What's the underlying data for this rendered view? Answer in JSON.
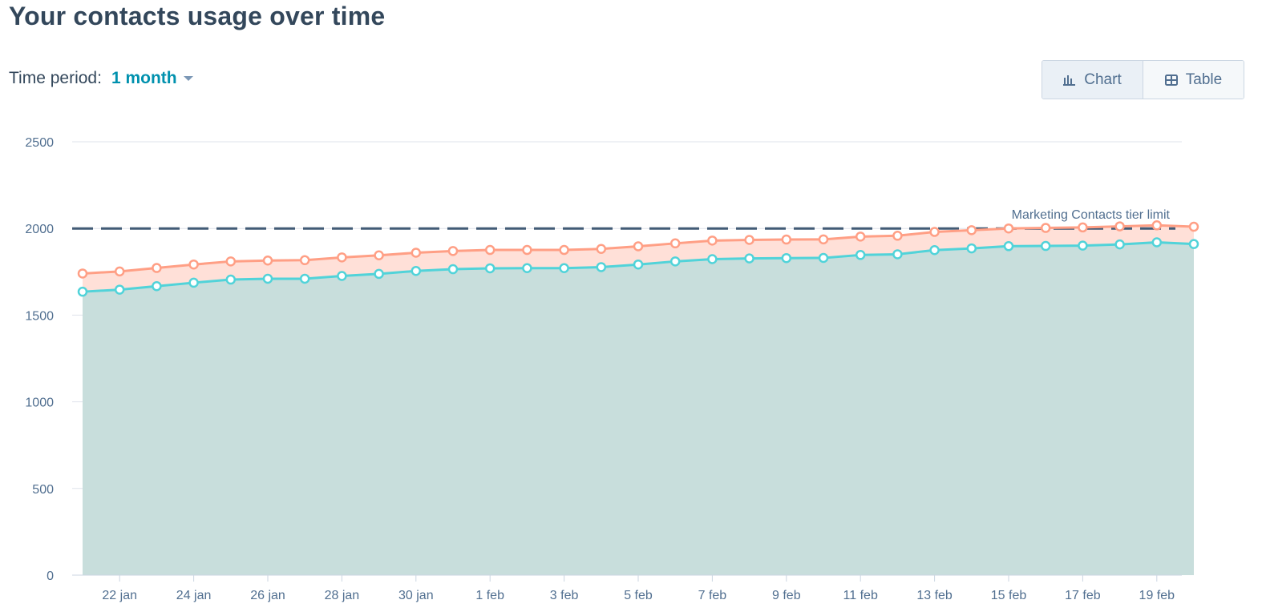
{
  "header": {
    "title": "Your contacts usage over time"
  },
  "filter": {
    "label": "Time period:",
    "value": "1 month"
  },
  "view_toggle": {
    "chart_label": "Chart",
    "chart_icon": "bar-chart-icon",
    "table_label": "Table",
    "table_icon": "table-icon",
    "active": "chart"
  },
  "chart_data": {
    "type": "area",
    "title": "",
    "xlabel": "",
    "ylabel": "",
    "ylim": [
      0,
      2500
    ],
    "y_ticks": [
      "0",
      "500",
      "1000",
      "1500",
      "2000",
      "2500"
    ],
    "grid": true,
    "x": [
      "21 jan",
      "22 jan",
      "23 jan",
      "24 jan",
      "25 jan",
      "26 jan",
      "27 jan",
      "28 jan",
      "29 jan",
      "30 jan",
      "31 jan",
      "1 feb",
      "2 feb",
      "3 feb",
      "4 feb",
      "5 feb",
      "6 feb",
      "7 feb",
      "8 feb",
      "9 feb",
      "10 feb",
      "11 feb",
      "12 feb",
      "13 feb",
      "14 feb",
      "15 feb",
      "16 feb",
      "17 feb",
      "18 feb",
      "19 feb",
      "20 feb"
    ],
    "x_tick_labels": [
      "22 jan",
      "24 jan",
      "26 jan",
      "28 jan",
      "30 jan",
      "1 feb",
      "3 feb",
      "5 feb",
      "7 feb",
      "9 feb",
      "11 feb",
      "13 feb",
      "15 feb",
      "17 feb",
      "19 feb"
    ],
    "series": [
      {
        "color": "#ff9f85",
        "fill": "#ffe0d8",
        "values": [
          1740,
          1752,
          1772,
          1792,
          1810,
          1815,
          1817,
          1833,
          1845,
          1860,
          1870,
          1876,
          1876,
          1876,
          1882,
          1897,
          1914,
          1930,
          1934,
          1936,
          1937,
          1953,
          1958,
          1980,
          1990,
          2000,
          2003,
          2006,
          2012,
          2018,
          2010
        ]
      },
      {
        "color": "#51d3d9",
        "fill": "#c8dedc",
        "values": [
          1635,
          1647,
          1667,
          1687,
          1705,
          1710,
          1710,
          1726,
          1738,
          1755,
          1765,
          1770,
          1771,
          1771,
          1777,
          1792,
          1810,
          1823,
          1827,
          1829,
          1830,
          1847,
          1851,
          1875,
          1885,
          1898,
          1899,
          1901,
          1908,
          1920,
          1910
        ]
      }
    ],
    "reference_line": {
      "value": 2000,
      "label": "Marketing Contacts tier limit",
      "color": "#425b76"
    }
  }
}
